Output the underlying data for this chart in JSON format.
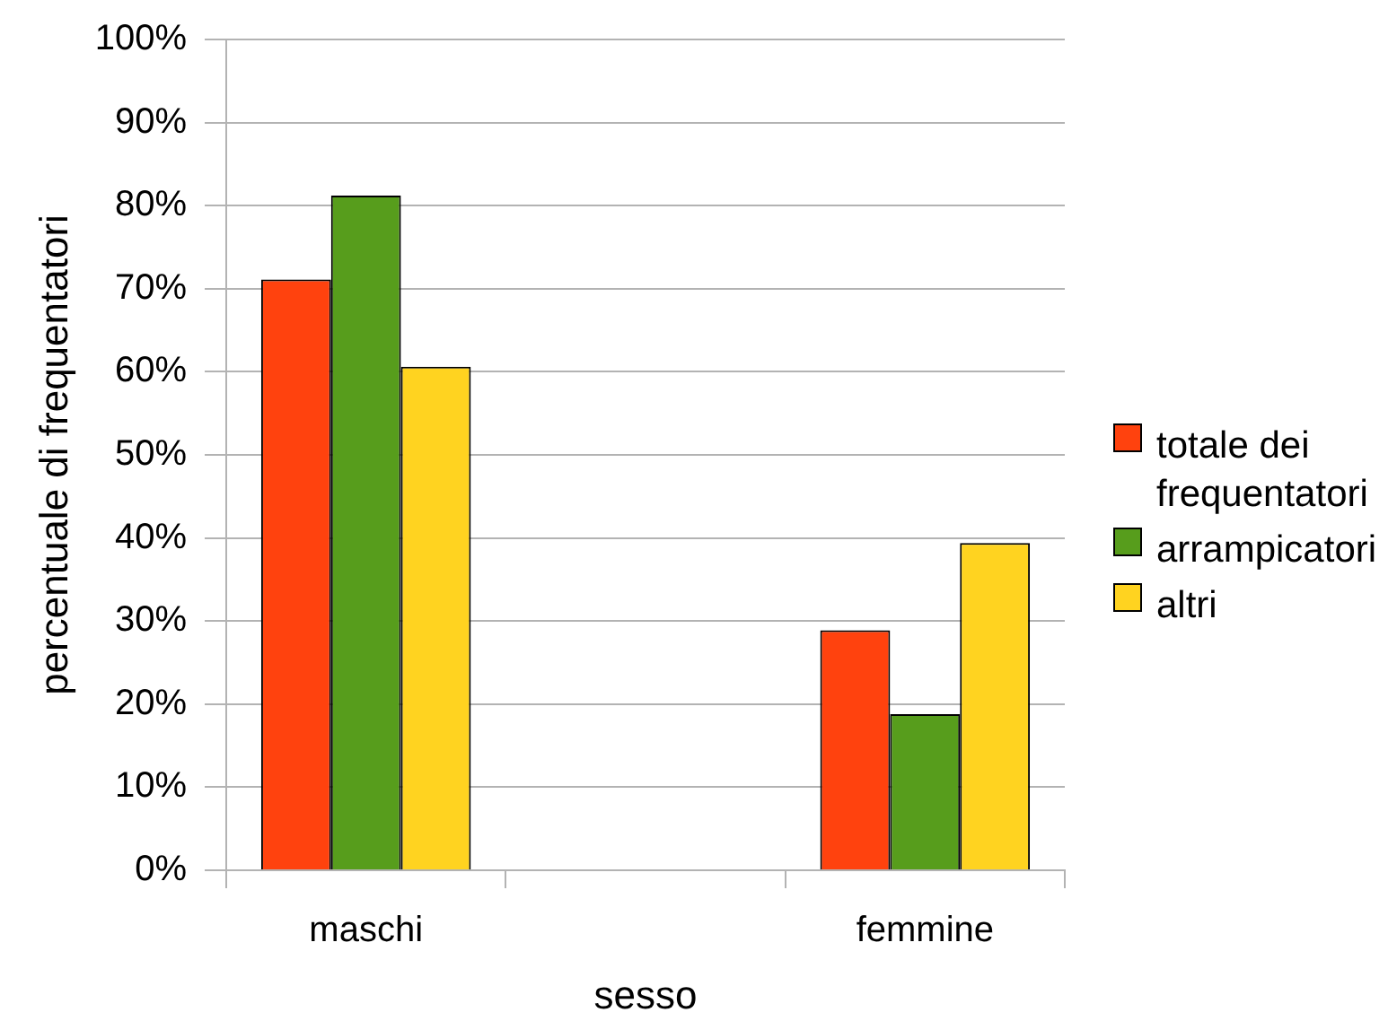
{
  "chart_data": {
    "type": "bar",
    "xlabel": "sesso",
    "ylabel": "percentuale di frequentatori",
    "categories": [
      "maschi",
      null,
      "femmine"
    ],
    "series": [
      {
        "name": "totale dei frequentatori",
        "color": "#ff420e",
        "values": [
          71.1,
          null,
          28.9
        ]
      },
      {
        "name": "arrampicatori",
        "color": "#579d1c",
        "values": [
          81.2,
          null,
          18.8
        ]
      },
      {
        "name": "altri",
        "color": "#ffd320",
        "values": [
          60.6,
          null,
          39.4
        ]
      }
    ],
    "ylim": [
      0,
      100
    ],
    "yticks": [
      {
        "value": 0,
        "label": "0%"
      },
      {
        "value": 10,
        "label": "10%"
      },
      {
        "value": 20,
        "label": "20%"
      },
      {
        "value": 30,
        "label": "30%"
      },
      {
        "value": 40,
        "label": "40%"
      },
      {
        "value": 50,
        "label": "50%"
      },
      {
        "value": 60,
        "label": "60%"
      },
      {
        "value": 70,
        "label": "70%"
      },
      {
        "value": 80,
        "label": "80%"
      },
      {
        "value": 90,
        "label": "90%"
      },
      {
        "value": 100,
        "label": "100%"
      }
    ],
    "grid": "y",
    "legend": "right"
  }
}
